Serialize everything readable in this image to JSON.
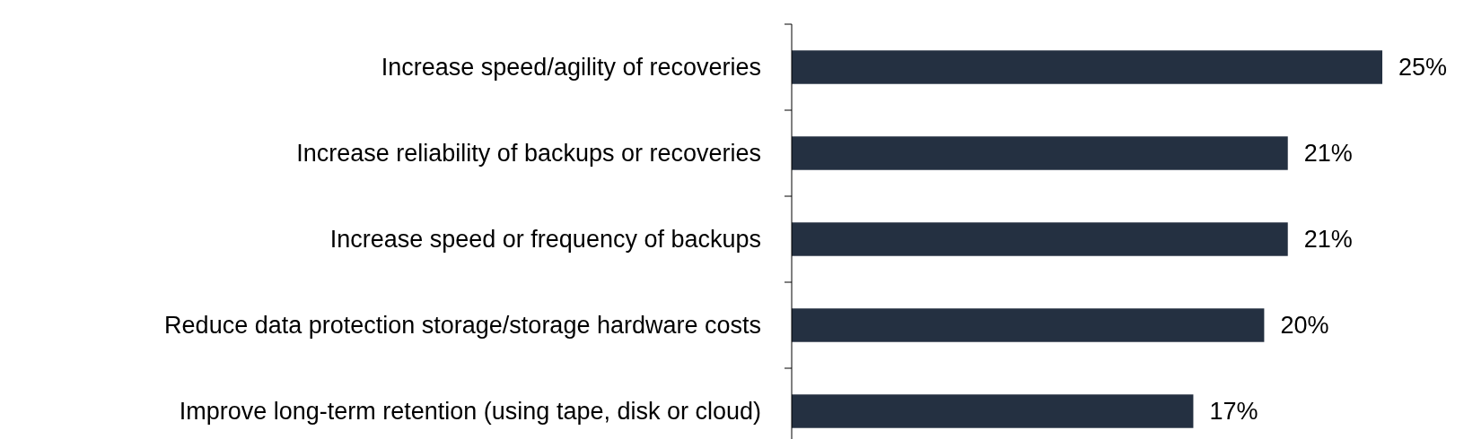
{
  "chart_data": {
    "type": "bar",
    "orientation": "horizontal",
    "categories": [
      "Increase speed/agility of recoveries",
      "Increase reliability of backups or recoveries",
      "Increase speed or frequency of backups",
      "Reduce data protection storage/storage hardware costs",
      "Improve long-term retention (using tape, disk or cloud)"
    ],
    "values": [
      25,
      21,
      21,
      20,
      17
    ],
    "value_labels": [
      "25%",
      "21%",
      "21%",
      "20%",
      "17%"
    ],
    "color": "#243041"
  }
}
